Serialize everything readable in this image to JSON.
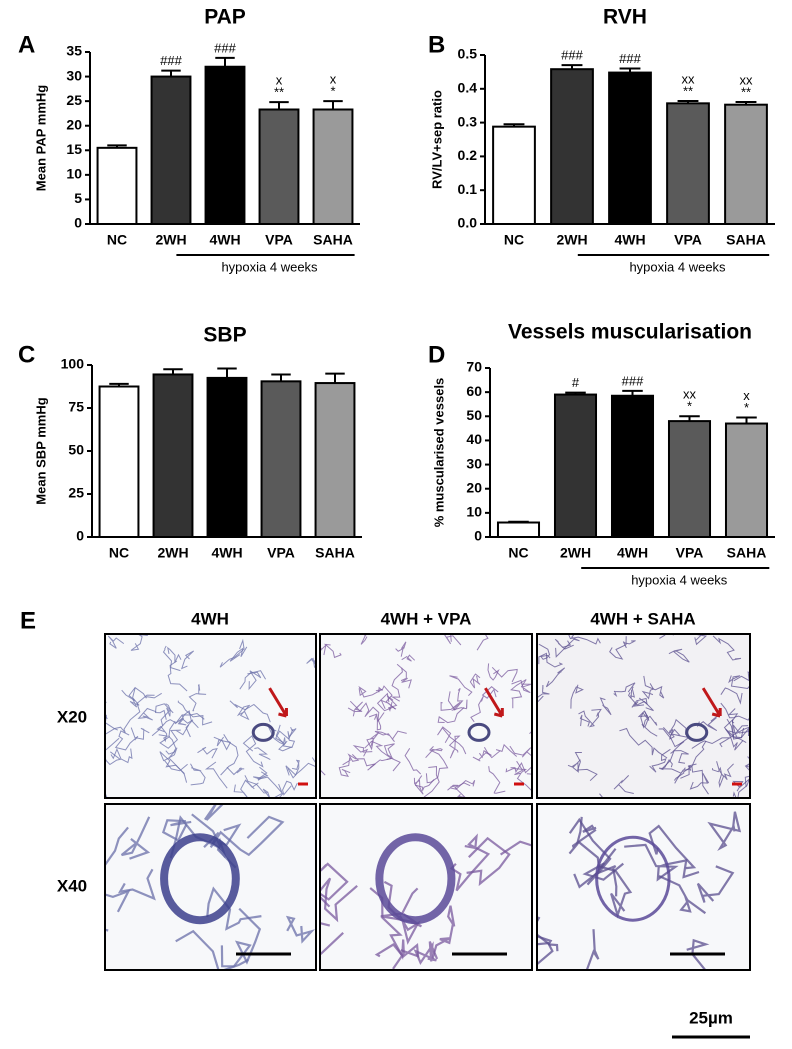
{
  "chart_data": [
    {
      "type": "bar",
      "panel_label": "A",
      "title": "PAP",
      "y_label": "Mean PAP mmHg",
      "categories": [
        "NC",
        "2WH",
        "4WH",
        "VPA",
        "SAHA"
      ],
      "values": [
        15.5,
        30,
        32,
        23.3,
        23.3
      ],
      "errors": [
        0.5,
        1.2,
        1.8,
        1.5,
        1.7
      ],
      "colors": [
        "#ffffff",
        "#333333",
        "#000000",
        "#5a5a5a",
        "#9a9a9a"
      ],
      "significance": [
        null,
        "###",
        "###",
        "**",
        "*"
      ],
      "significance2": [
        null,
        null,
        null,
        "x",
        "x"
      ],
      "group_label": "hypoxia 4 weeks",
      "ylim": [
        0,
        35
      ],
      "yticks": [
        0,
        5,
        10,
        15,
        20,
        25,
        30,
        35
      ]
    },
    {
      "type": "bar",
      "panel_label": "B",
      "title": "RVH",
      "y_label": "RV/LV+sep ratio",
      "categories": [
        "NC",
        "2WH",
        "4WH",
        "VPA",
        "SAHA"
      ],
      "values": [
        0.288,
        0.458,
        0.448,
        0.357,
        0.353
      ],
      "errors": [
        0.007,
        0.012,
        0.012,
        0.007,
        0.008
      ],
      "colors": [
        "#ffffff",
        "#333333",
        "#000000",
        "#5a5a5a",
        "#9a9a9a"
      ],
      "significance": [
        null,
        "###",
        "###",
        "**",
        "**"
      ],
      "significance2": [
        null,
        null,
        null,
        "xx",
        "xx"
      ],
      "group_label": "hypoxia 4 weeks",
      "ylim": [
        0,
        0.5
      ],
      "yticks": [
        {
          "value": 0,
          "label": "0.0"
        },
        0.1,
        0.2,
        0.3,
        0.4,
        0.5
      ]
    },
    {
      "type": "bar",
      "panel_label": "C",
      "title": "SBP",
      "y_label": "Mean SBP mmHg",
      "categories": [
        "NC",
        "2WH",
        "4WH",
        "VPA",
        "SAHA"
      ],
      "values": [
        87.5,
        94.5,
        92.5,
        90.5,
        89.5
      ],
      "errors": [
        1.5,
        3,
        5.5,
        4,
        5.5
      ],
      "colors": [
        "#ffffff",
        "#333333",
        "#000000",
        "#5a5a5a",
        "#9a9a9a"
      ],
      "ylim": [
        0,
        100
      ],
      "yticks": [
        0,
        25,
        50,
        75,
        100
      ]
    },
    {
      "type": "bar",
      "panel_label": "D",
      "title": "Vessels muscularisation",
      "y_label": "% muscularised vessels",
      "categories": [
        "NC",
        "2WH",
        "4WH",
        "VPA",
        "SAHA"
      ],
      "values": [
        6,
        59,
        58.5,
        48,
        47
      ],
      "errors": [
        0.3,
        0.8,
        2,
        2,
        2.5
      ],
      "colors": [
        "#ffffff",
        "#333333",
        "#000000",
        "#5a5a5a",
        "#9a9a9a"
      ],
      "significance": [
        null,
        "#",
        "###",
        "*",
        "*"
      ],
      "significance2": [
        null,
        null,
        null,
        "xx",
        "x"
      ],
      "group_label": "hypoxia 4 weeks",
      "ylim": [
        0,
        70
      ],
      "yticks": [
        0,
        10,
        20,
        30,
        40,
        50,
        60,
        70
      ]
    }
  ],
  "panel_e": {
    "panel_label": "E",
    "columns": [
      "4WH",
      "4WH + VPA",
      "4WH + SAHA"
    ],
    "rows": [
      "X20",
      "X40"
    ],
    "scale_bar": "25µm"
  }
}
